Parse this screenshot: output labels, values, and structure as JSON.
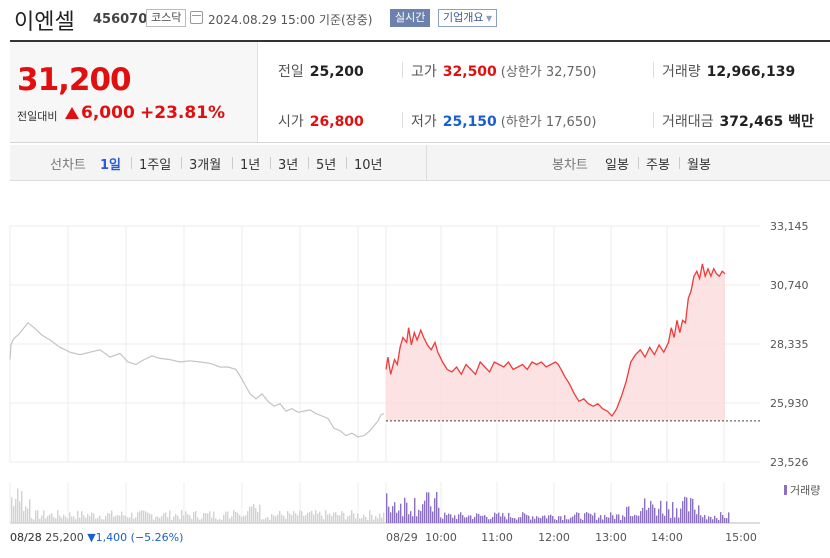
{
  "header": {
    "name": "이엔셀",
    "code": "456070",
    "market": "코스닥",
    "datetime": "2024.08.29 15:00 기준(장중)",
    "realtime": "실시간",
    "company_overview": "기업개요"
  },
  "quote": {
    "price": "31,200",
    "compare_label": "전일대비",
    "change": "6,000",
    "change_pct": "+23.81%",
    "prev_label": "전일",
    "prev": "25,200",
    "high_label": "고가",
    "high": "32,500",
    "upper_limit": "(상한가 32,750)",
    "volume_label": "거래량",
    "volume": "12,966,139",
    "open_label": "시가",
    "open": "26,800",
    "low_label": "저가",
    "low": "25,150",
    "lower_limit": "(하한가 17,650)",
    "amount_label": "거래대금",
    "amount": "372,465 백만"
  },
  "tabs": {
    "line_title": "선차트",
    "line": [
      "1일",
      "1주일",
      "3개월",
      "1년",
      "3년",
      "5년",
      "10년"
    ],
    "candle_title": "봉차트",
    "candle": [
      "일봉",
      "주봉",
      "월봉"
    ]
  },
  "chart_data": {
    "type": "line",
    "y_ticks": [
      "33,145",
      "30,740",
      "28,335",
      "25,930",
      "23,526"
    ],
    "ylim": [
      23526,
      33145
    ],
    "x_ticks": [
      "08/28",
      "08/29",
      "10:00",
      "11:00",
      "12:00",
      "13:00",
      "14:00",
      "15:00"
    ],
    "grid": true,
    "baseline": 25200,
    "volume_label": "거래량",
    "series": [
      {
        "day": "08/28",
        "x": [
          0,
          1,
          3,
          5,
          8,
          12,
          18,
          24,
          32,
          40,
          50,
          60,
          70,
          80,
          90,
          100,
          110,
          118,
          126,
          134,
          142,
          150,
          160,
          170,
          180,
          190,
          200,
          210,
          218,
          226,
          232,
          236,
          240,
          246,
          252,
          258,
          264,
          270,
          276,
          282,
          288,
          294,
          300,
          306,
          312,
          318,
          324,
          330,
          336,
          342,
          348,
          354,
          360,
          364,
          368,
          371,
          374
        ],
        "values": [
          27700,
          28300,
          28500,
          28600,
          28700,
          28900,
          29200,
          29000,
          28700,
          28500,
          28200,
          28000,
          27900,
          28000,
          28100,
          27800,
          27950,
          27600,
          27500,
          27700,
          27850,
          27750,
          27700,
          27600,
          27650,
          27600,
          27550,
          27400,
          27400,
          27300,
          26900,
          26600,
          26300,
          26100,
          26300,
          26000,
          25800,
          25900,
          25600,
          25700,
          25550,
          25600,
          25650,
          25500,
          25400,
          25300,
          24900,
          24800,
          24600,
          24700,
          24550,
          24600,
          24800,
          25000,
          25200,
          25450,
          25500
        ]
      },
      {
        "day": "08/29",
        "time": [
          "09:00",
          "09:02",
          "09:05",
          "09:09",
          "09:12",
          "09:15",
          "09:18",
          "09:22",
          "09:24",
          "09:27",
          "09:30",
          "09:33",
          "09:37",
          "09:40",
          "09:44",
          "09:48",
          "09:52",
          "09:55",
          "10:00",
          "10:05",
          "10:10",
          "10:15",
          "10:20",
          "10:25",
          "10:30",
          "10:35",
          "10:40",
          "10:45",
          "10:50",
          "10:55",
          "11:00",
          "11:05",
          "11:10",
          "11:15",
          "11:20",
          "11:25",
          "11:30",
          "11:35",
          "11:40",
          "11:45",
          "11:50",
          "11:55",
          "12:00",
          "12:03",
          "12:06",
          "12:10",
          "12:15",
          "12:20",
          "12:25",
          "12:30",
          "12:35",
          "12:40",
          "12:45",
          "12:50",
          "12:55",
          "13:00",
          "13:05",
          "13:10",
          "13:15",
          "13:20",
          "13:25",
          "13:30",
          "13:35",
          "13:40",
          "13:45",
          "13:50",
          "13:55",
          "14:00",
          "14:03",
          "14:06",
          "14:09",
          "14:12",
          "14:15",
          "14:18",
          "14:21",
          "14:24",
          "14:27",
          "14:30",
          "14:33",
          "14:36",
          "14:39",
          "14:42",
          "14:45",
          "14:48",
          "14:51",
          "14:54",
          "14:57",
          "15:00"
        ],
        "values": [
          27300,
          27800,
          27100,
          27700,
          27500,
          28200,
          28600,
          28400,
          29000,
          28300,
          28800,
          28500,
          28900,
          28600,
          28300,
          28100,
          28400,
          28000,
          27600,
          27300,
          27200,
          27400,
          27100,
          27500,
          27300,
          27100,
          27600,
          27400,
          27200,
          27600,
          27500,
          27400,
          27600,
          27300,
          27400,
          27500,
          27300,
          27600,
          27500,
          27600,
          27400,
          27500,
          27600,
          27500,
          27300,
          27000,
          26700,
          26300,
          26000,
          26100,
          25900,
          25800,
          25900,
          25700,
          25600,
          25400,
          25700,
          26200,
          26800,
          27600,
          27900,
          28100,
          27800,
          28200,
          27900,
          28300,
          28000,
          28400,
          29000,
          28600,
          29300,
          28800,
          29300,
          29200,
          30200,
          30500,
          31100,
          31300,
          31000,
          31600,
          31100,
          31400,
          31100,
          31400,
          31200,
          31100,
          31300,
          31200
        ]
      }
    ]
  }
}
